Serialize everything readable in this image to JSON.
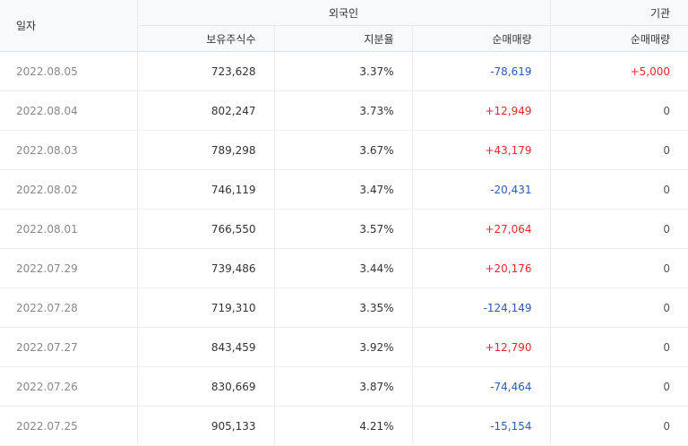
{
  "header": {
    "date_label": "일자",
    "foreign_label": "외국인",
    "institution_label": "기관",
    "holdings_label": "보유주식수",
    "ratio_label": "지분율",
    "foreign_net_label": "순매매량",
    "institution_net_label": "순매매량"
  },
  "rows": [
    {
      "date": "2022.08.05",
      "holdings": "723,628",
      "ratio": "3.37%",
      "foreign_net": "-78,619",
      "institution_net": "+5,000"
    },
    {
      "date": "2022.08.04",
      "holdings": "802,247",
      "ratio": "3.73%",
      "foreign_net": "+12,949",
      "institution_net": "0"
    },
    {
      "date": "2022.08.03",
      "holdings": "789,298",
      "ratio": "3.67%",
      "foreign_net": "+43,179",
      "institution_net": "0"
    },
    {
      "date": "2022.08.02",
      "holdings": "746,119",
      "ratio": "3.47%",
      "foreign_net": "-20,431",
      "institution_net": "0"
    },
    {
      "date": "2022.08.01",
      "holdings": "766,550",
      "ratio": "3.57%",
      "foreign_net": "+27,064",
      "institution_net": "0"
    },
    {
      "date": "2022.07.29",
      "holdings": "739,486",
      "ratio": "3.44%",
      "foreign_net": "+20,176",
      "institution_net": "0"
    },
    {
      "date": "2022.07.28",
      "holdings": "719,310",
      "ratio": "3.35%",
      "foreign_net": "-124,149",
      "institution_net": "0"
    },
    {
      "date": "2022.07.27",
      "holdings": "843,459",
      "ratio": "3.92%",
      "foreign_net": "+12,790",
      "institution_net": "0"
    },
    {
      "date": "2022.07.26",
      "holdings": "830,669",
      "ratio": "3.87%",
      "foreign_net": "-74,464",
      "institution_net": "0"
    },
    {
      "date": "2022.07.25",
      "holdings": "905,133",
      "ratio": "4.21%",
      "foreign_net": "-15,154",
      "institution_net": "0"
    }
  ],
  "colors": {
    "positive": "#e8262a",
    "negative": "#2a5ab8",
    "neutral": "#555555"
  }
}
